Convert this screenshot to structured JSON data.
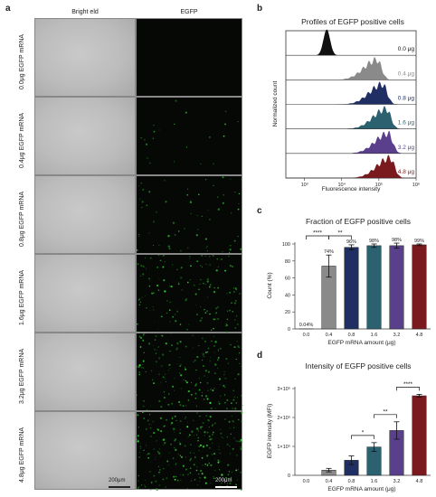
{
  "panel_a": {
    "letter": "a",
    "col_brightfield": "Bright eld",
    "col_egfp": "EGFP",
    "scale_label": "200μm",
    "rows": [
      {
        "label": "0.0μg EGFP mRNA",
        "green_density": 0.0
      },
      {
        "label": "0.4μg EGFP mRNA",
        "green_density": 0.08
      },
      {
        "label": "0.8μg EGFP mRNA",
        "green_density": 0.25
      },
      {
        "label": "1.6μg EGFP mRNA",
        "green_density": 0.55
      },
      {
        "label": "3.2μg EGFP mRNA",
        "green_density": 0.75
      },
      {
        "label": "4.8μg EGFP mRNA",
        "green_density": 1.0
      }
    ]
  },
  "chart_data": [
    {
      "type": "area",
      "panel_letter": "b",
      "title": "Profiles of EGFP positive cells",
      "xlabel": "Fluorescence intensity",
      "ylabel": "Normalized count",
      "x_scale": "log",
      "x_ticks": [
        "10³",
        "10⁴",
        "10⁵",
        "10⁶"
      ],
      "series": [
        {
          "name": "0.0 μg",
          "color": "#111111",
          "peak_log10": 3.6
        },
        {
          "name": "0.4 μg",
          "color": "#8a8a8a",
          "peak_log10": 4.95
        },
        {
          "name": "0.8 μg",
          "color": "#1f2f63",
          "peak_log10": 5.1
        },
        {
          "name": "1.6 μg",
          "color": "#2c6170",
          "peak_log10": 5.2
        },
        {
          "name": "3.2 μg",
          "color": "#5a3f8c",
          "peak_log10": 5.25
        },
        {
          "name": "4.8 μg",
          "color": "#7a1a1f",
          "peak_log10": 5.3
        }
      ],
      "grid": false
    },
    {
      "type": "bar",
      "panel_letter": "c",
      "title": "Fraction of EGFP positive cells",
      "xlabel": "EGFP mRNA amount (μg)",
      "ylabel": "Count (%)",
      "categories": [
        "0.0",
        "0.4",
        "0.8",
        "1.6",
        "3.2",
        "4.8"
      ],
      "values": [
        0.04,
        74,
        96,
        98,
        98,
        99
      ],
      "errors": [
        0,
        13,
        3,
        2,
        3,
        1
      ],
      "data_labels": [
        "0.04%",
        "74%",
        "96%",
        "98%",
        "98%",
        "99%"
      ],
      "colors": [
        "#1f2f63",
        "#8a8a8a",
        "#1f2f63",
        "#2c6170",
        "#5a3f8c",
        "#7a1a1f"
      ],
      "ylim": [
        0,
        100
      ],
      "y_ticks": [
        "0",
        "20",
        "40",
        "60",
        "80",
        "100"
      ],
      "significance": [
        {
          "from": 0,
          "to": 1,
          "label": "****"
        },
        {
          "from": 1,
          "to": 2,
          "label": "**"
        }
      ]
    },
    {
      "type": "bar",
      "panel_letter": "d",
      "title": "Intensity of EGFP positive cells",
      "xlabel": "EGFP mRNA amount (μg)",
      "ylabel": "EGFP intensity (MFI)",
      "categories": [
        "0.0",
        "0.4",
        "0.8",
        "1.6",
        "3.2",
        "4.8"
      ],
      "values": [
        0,
        18000,
        52000,
        98000,
        155000,
        275000
      ],
      "errors": [
        0,
        6000,
        15000,
        15000,
        30000,
        5000
      ],
      "colors": [
        "#1f2f63",
        "#8a8a8a",
        "#1f2f63",
        "#2c6170",
        "#5a3f8c",
        "#7a1a1f"
      ],
      "ylim": [
        0,
        300000
      ],
      "y_ticks": [
        "0",
        "1×10⁵",
        "2×10⁵",
        "3×10⁵"
      ],
      "significance": [
        {
          "from": 2,
          "to": 3,
          "label": "*"
        },
        {
          "from": 3,
          "to": 4,
          "label": "**"
        },
        {
          "from": 4,
          "to": 5,
          "label": "****"
        }
      ]
    }
  ]
}
